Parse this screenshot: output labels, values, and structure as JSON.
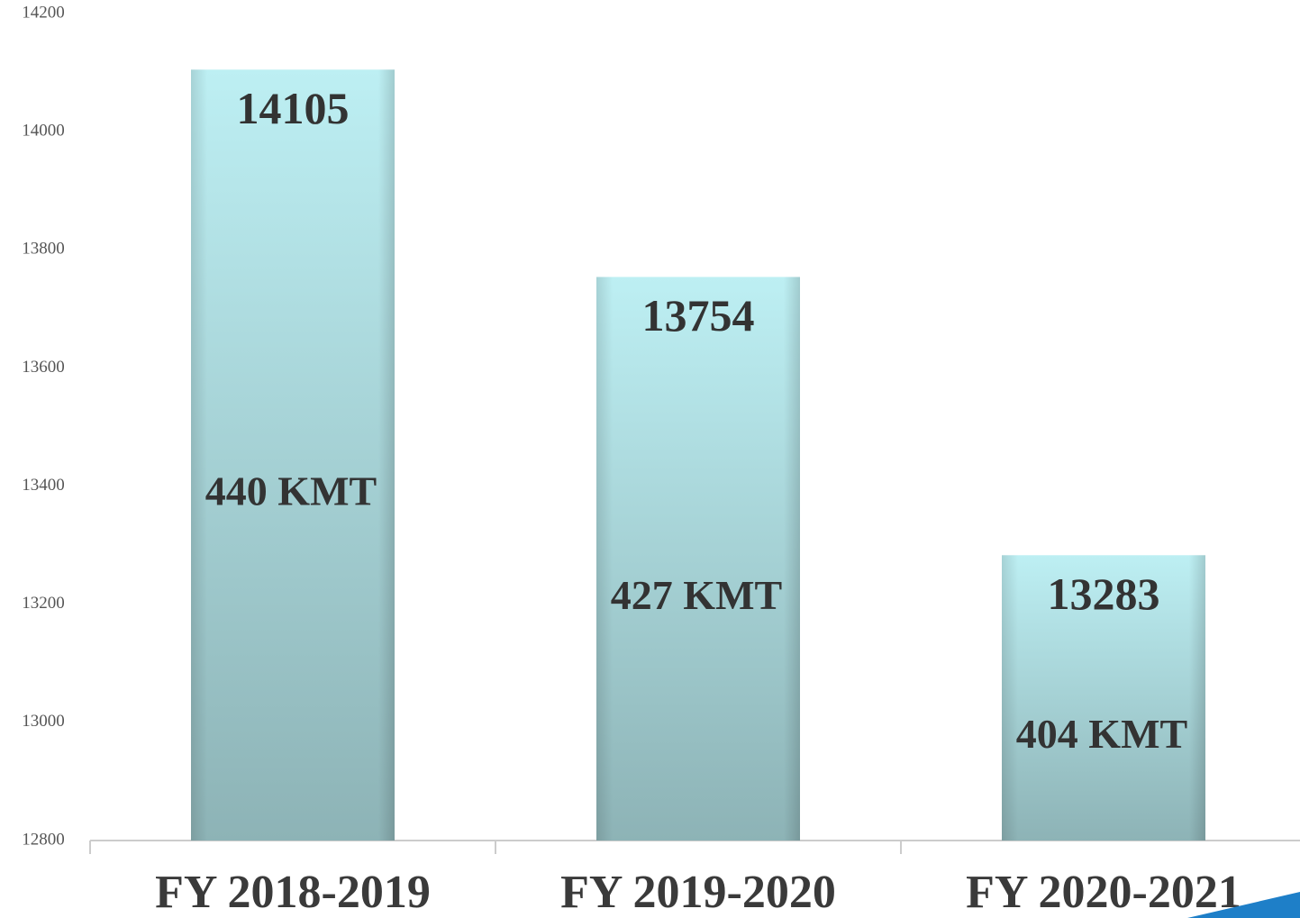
{
  "chart_data": {
    "type": "bar",
    "categories": [
      "FY 2018-2019",
      "FY 2019-2020",
      "FY 2020-2021"
    ],
    "values": [
      14105,
      13754,
      13283
    ],
    "annotations": [
      "440 KMT",
      "427 KMT",
      "404 KMT"
    ],
    "color": "#a8d8dc",
    "ylim": [
      12800,
      14200
    ],
    "yticks": [
      12800,
      13000,
      13200,
      13400,
      13600,
      13800,
      14000,
      14200
    ],
    "grid": false
  }
}
